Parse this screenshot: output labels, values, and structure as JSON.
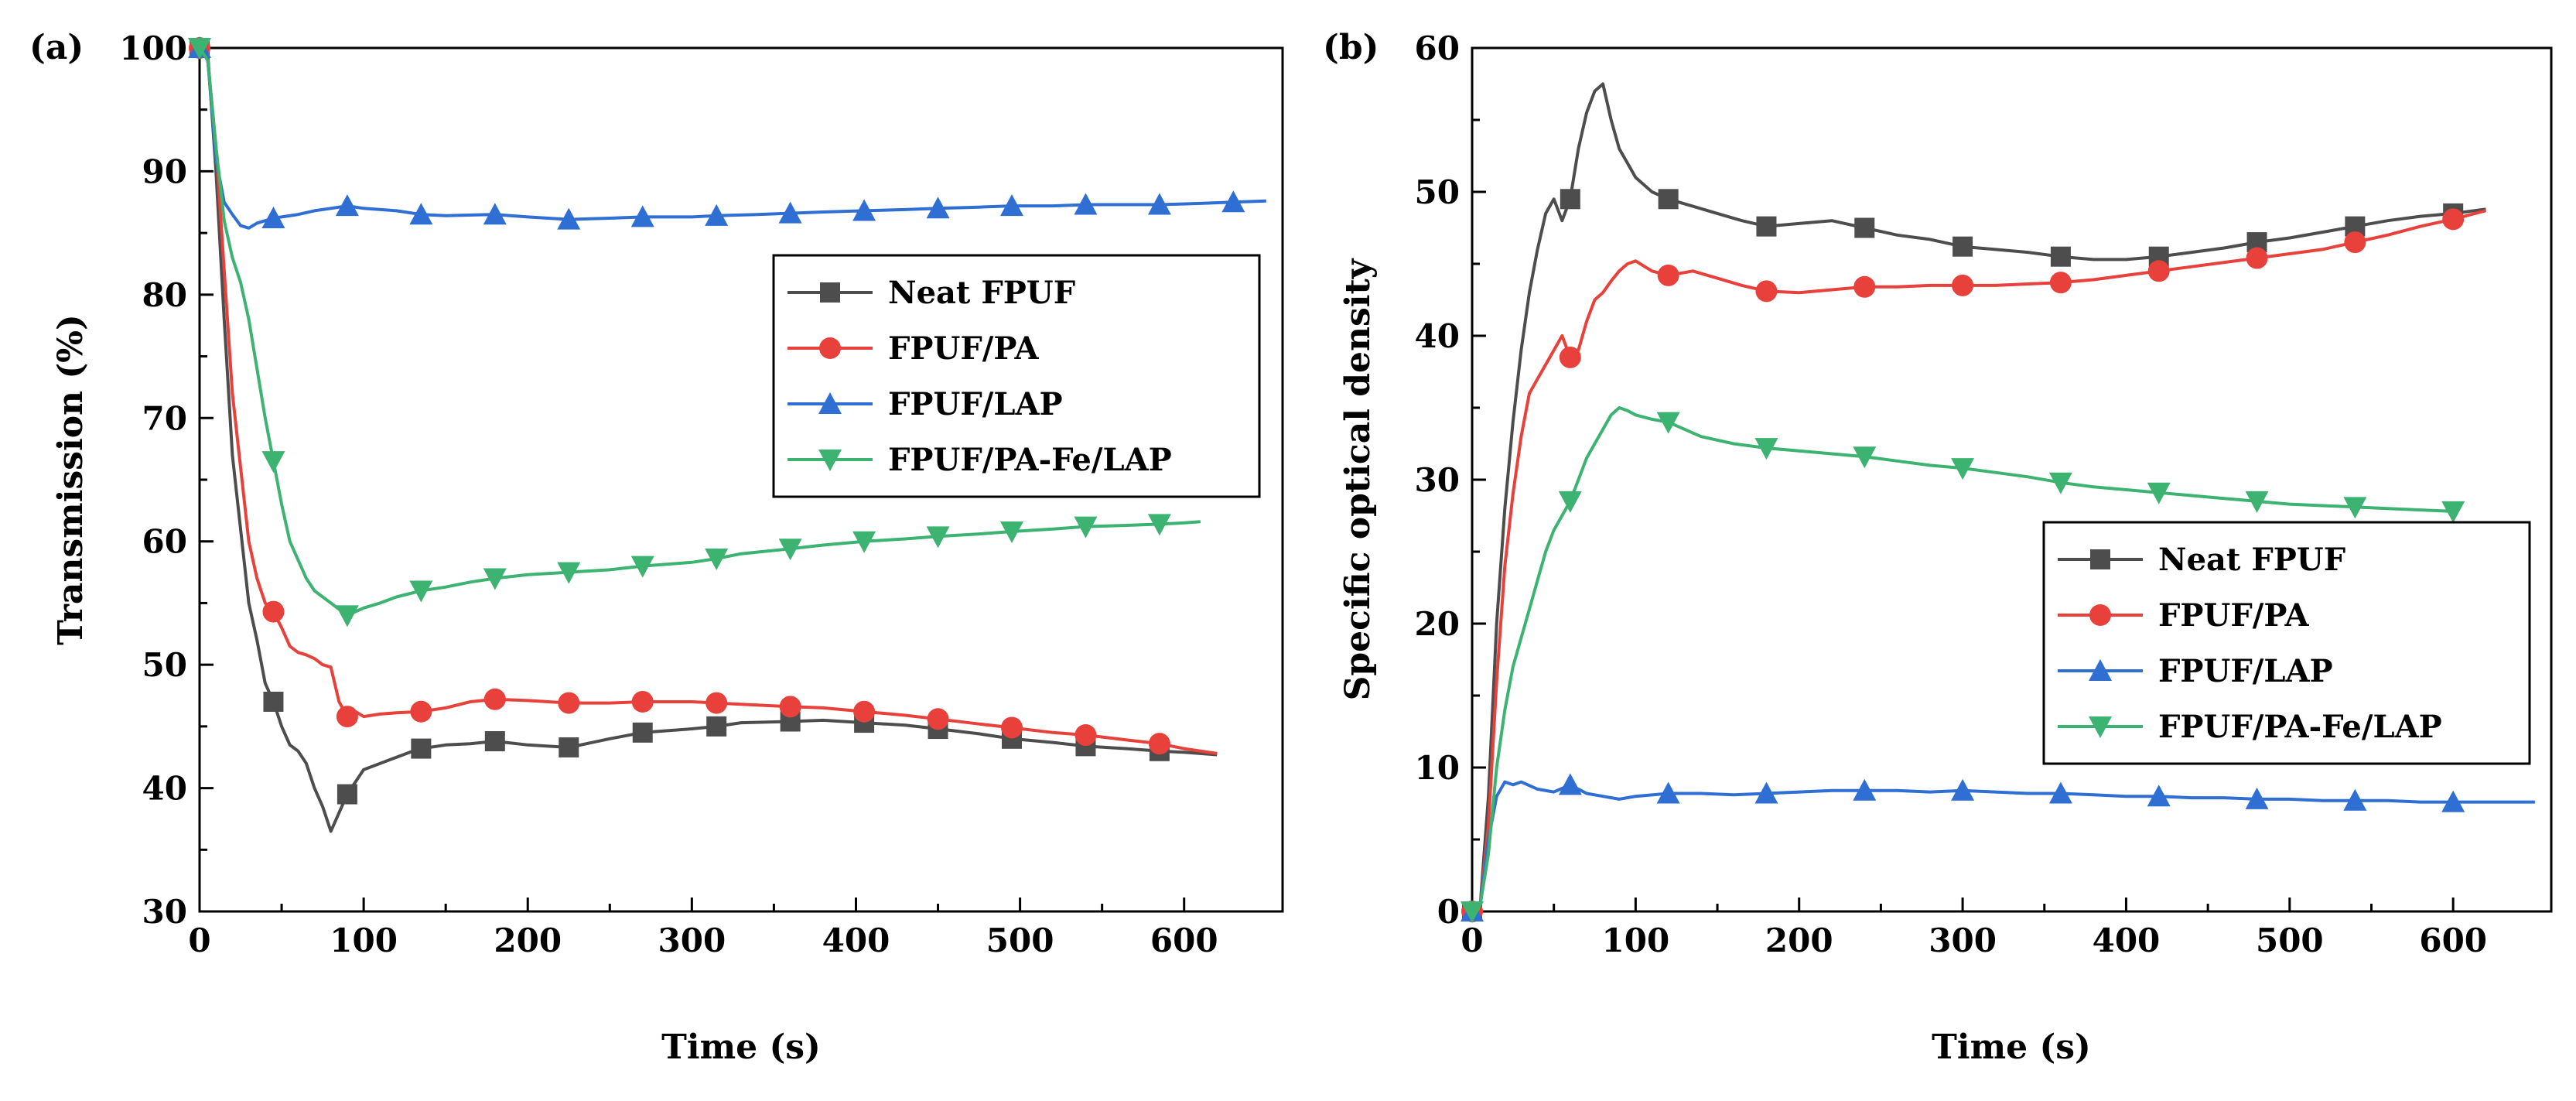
{
  "chart_data": [
    {
      "id": "a",
      "panel_label": "(a)",
      "type": "line",
      "title": "",
      "xlabel": "Time (s)",
      "ylabel": "Transmission (%)",
      "xlim": [
        0,
        660
      ],
      "ylim": [
        30,
        100
      ],
      "xticks": [
        0,
        100,
        200,
        300,
        400,
        500,
        600
      ],
      "yticks": [
        30,
        40,
        50,
        60,
        70,
        80,
        90,
        100
      ],
      "legend_position": "right-middle",
      "series": [
        {
          "name": "Neat FPUF",
          "color": "#4d4d4d",
          "marker": "square",
          "x": [
            0,
            5,
            10,
            15,
            20,
            25,
            30,
            35,
            40,
            45,
            50,
            55,
            60,
            65,
            70,
            75,
            80,
            85,
            90,
            95,
            100,
            110,
            120,
            130,
            135,
            150,
            165,
            180,
            200,
            225,
            250,
            270,
            300,
            315,
            330,
            360,
            380,
            405,
            430,
            450,
            475,
            495,
            520,
            540,
            565,
            585,
            600,
            620
          ],
          "y": [
            100,
            99.5,
            90,
            78,
            67,
            61,
            55,
            52,
            48.5,
            47,
            45,
            43.5,
            43,
            42,
            40,
            38.5,
            36.5,
            38,
            39.5,
            40.5,
            41.5,
            42,
            42.5,
            43,
            43.2,
            43.5,
            43.6,
            43.8,
            43.5,
            43.3,
            44,
            44.5,
            44.8,
            45,
            45.3,
            45.4,
            45.5,
            45.3,
            45.1,
            44.8,
            44.4,
            44,
            43.7,
            43.4,
            43.2,
            43,
            42.9,
            42.7
          ],
          "marker_x": [
            0,
            45,
            90,
            135,
            180,
            225,
            270,
            315,
            360,
            405,
            450,
            495,
            540,
            585
          ]
        },
        {
          "name": "FPUF/PA",
          "color": "#e8403a",
          "marker": "circle",
          "x": [
            0,
            5,
            10,
            15,
            20,
            25,
            30,
            35,
            40,
            45,
            50,
            55,
            60,
            65,
            70,
            75,
            80,
            85,
            90,
            95,
            100,
            110,
            120,
            135,
            150,
            165,
            180,
            200,
            225,
            250,
            270,
            300,
            315,
            330,
            360,
            380,
            405,
            430,
            450,
            475,
            495,
            520,
            540,
            565,
            585,
            600,
            620
          ],
          "y": [
            100,
            99,
            92,
            82,
            72,
            66,
            60,
            57,
            55,
            54.3,
            53,
            51.5,
            51,
            50.8,
            50.5,
            50,
            49.8,
            47,
            45.8,
            46.2,
            45.8,
            46,
            46.1,
            46.2,
            46.5,
            47,
            47.2,
            47.1,
            46.9,
            46.9,
            47,
            47,
            46.9,
            46.8,
            46.6,
            46.5,
            46.2,
            45.9,
            45.6,
            45.2,
            44.9,
            44.5,
            44.3,
            43.9,
            43.6,
            43.2,
            42.8
          ],
          "marker_x": [
            0,
            45,
            90,
            135,
            180,
            225,
            270,
            315,
            360,
            405,
            450,
            495,
            540,
            585
          ]
        },
        {
          "name": "FPUF/LAP",
          "color": "#2f6fd4",
          "marker": "triangle-up",
          "x": [
            0,
            5,
            10,
            15,
            20,
            25,
            30,
            35,
            40,
            45,
            50,
            60,
            70,
            80,
            90,
            100,
            120,
            135,
            150,
            180,
            200,
            225,
            250,
            270,
            300,
            315,
            340,
            360,
            380,
            405,
            430,
            450,
            475,
            495,
            520,
            540,
            565,
            585,
            610,
            630,
            650
          ],
          "y": [
            100,
            99,
            91,
            87.5,
            86.5,
            85.6,
            85.4,
            85.8,
            86,
            86.2,
            86.3,
            86.5,
            86.8,
            87,
            87.2,
            87,
            86.8,
            86.5,
            86.4,
            86.5,
            86.3,
            86.1,
            86.2,
            86.3,
            86.3,
            86.4,
            86.5,
            86.6,
            86.7,
            86.8,
            86.9,
            87,
            87.1,
            87.2,
            87.2,
            87.3,
            87.3,
            87.3,
            87.4,
            87.5,
            87.6
          ],
          "marker_x": [
            0,
            45,
            90,
            135,
            180,
            225,
            270,
            315,
            360,
            405,
            450,
            495,
            540,
            585,
            630
          ]
        },
        {
          "name": "FPUF/PA-Fe/LAP",
          "color": "#3cb371",
          "marker": "triangle-down",
          "x": [
            0,
            5,
            10,
            15,
            20,
            25,
            30,
            35,
            40,
            45,
            50,
            55,
            60,
            65,
            70,
            75,
            80,
            85,
            90,
            95,
            100,
            110,
            120,
            135,
            150,
            165,
            180,
            200,
            225,
            250,
            270,
            300,
            315,
            330,
            360,
            380,
            405,
            430,
            450,
            475,
            495,
            520,
            540,
            565,
            585,
            600,
            610
          ],
          "y": [
            100,
            99,
            92,
            86,
            83,
            81,
            78,
            74,
            70,
            66.5,
            63,
            60,
            58.5,
            57,
            56,
            55.5,
            55,
            54.5,
            54,
            54.3,
            54.6,
            55,
            55.5,
            56,
            56.3,
            56.7,
            57,
            57.3,
            57.5,
            57.7,
            58,
            58.3,
            58.6,
            59,
            59.4,
            59.7,
            60,
            60.2,
            60.4,
            60.6,
            60.8,
            61,
            61.2,
            61.3,
            61.4,
            61.5,
            61.6
          ],
          "marker_x": [
            0,
            45,
            90,
            135,
            180,
            225,
            270,
            315,
            360,
            405,
            450,
            495,
            540,
            585
          ]
        }
      ]
    },
    {
      "id": "b",
      "panel_label": "(b)",
      "type": "line",
      "title": "",
      "xlabel": "Time (s)",
      "ylabel": "Specific optical density",
      "xlim": [
        0,
        660
      ],
      "ylim": [
        0,
        60
      ],
      "xticks": [
        0,
        100,
        200,
        300,
        400,
        500,
        600
      ],
      "yticks": [
        0,
        10,
        20,
        30,
        40,
        50,
        60
      ],
      "legend_position": "right-middle",
      "series": [
        {
          "name": "Neat FPUF",
          "color": "#4d4d4d",
          "marker": "square",
          "x": [
            0,
            5,
            10,
            15,
            20,
            25,
            30,
            35,
            40,
            45,
            50,
            55,
            60,
            65,
            70,
            75,
            80,
            85,
            90,
            95,
            100,
            110,
            120,
            135,
            150,
            165,
            180,
            200,
            220,
            240,
            260,
            280,
            300,
            320,
            340,
            360,
            380,
            400,
            420,
            440,
            460,
            480,
            500,
            520,
            540,
            560,
            580,
            600,
            620
          ],
          "y": [
            0,
            0.5,
            8,
            20,
            28,
            34,
            39,
            43,
            46,
            48.5,
            49.5,
            48,
            49.5,
            53,
            55.5,
            57,
            57.5,
            55,
            53,
            52,
            51,
            50,
            49.5,
            49,
            48.5,
            48,
            47.6,
            47.8,
            48,
            47.5,
            47,
            46.7,
            46.2,
            46,
            45.8,
            45.5,
            45.3,
            45.3,
            45.5,
            45.8,
            46.1,
            46.5,
            46.8,
            47.2,
            47.6,
            48,
            48.3,
            48.5,
            48.8
          ],
          "marker_x": [
            0,
            60,
            120,
            180,
            240,
            300,
            360,
            420,
            480,
            540,
            600
          ]
        },
        {
          "name": "FPUF/PA",
          "color": "#e8403a",
          "marker": "circle",
          "x": [
            0,
            5,
            10,
            15,
            20,
            25,
            30,
            35,
            40,
            45,
            50,
            55,
            60,
            65,
            70,
            75,
            80,
            85,
            90,
            95,
            100,
            110,
            120,
            135,
            150,
            165,
            180,
            200,
            220,
            240,
            260,
            280,
            300,
            320,
            340,
            360,
            380,
            400,
            420,
            440,
            460,
            480,
            500,
            520,
            540,
            560,
            580,
            600,
            620
          ],
          "y": [
            0,
            0.5,
            6,
            16,
            24,
            29,
            33,
            36,
            37,
            38,
            39,
            40,
            38.5,
            39,
            41,
            42.5,
            43,
            43.8,
            44.5,
            45,
            45.2,
            44.5,
            44.2,
            44.5,
            44,
            43.5,
            43.1,
            43,
            43.2,
            43.4,
            43.4,
            43.5,
            43.5,
            43.5,
            43.6,
            43.7,
            43.9,
            44.2,
            44.5,
            44.8,
            45.1,
            45.4,
            45.7,
            46,
            46.5,
            47,
            47.6,
            48.1,
            48.7
          ],
          "marker_x": [
            0,
            60,
            120,
            180,
            240,
            300,
            360,
            420,
            480,
            540,
            600
          ]
        },
        {
          "name": "FPUF/LAP",
          "color": "#2f6fd4",
          "marker": "triangle-up",
          "x": [
            0,
            5,
            10,
            15,
            20,
            25,
            30,
            40,
            50,
            60,
            70,
            80,
            90,
            100,
            120,
            140,
            160,
            180,
            200,
            220,
            240,
            260,
            280,
            300,
            320,
            340,
            360,
            380,
            400,
            420,
            440,
            460,
            480,
            500,
            520,
            540,
            560,
            580,
            600,
            620,
            650
          ],
          "y": [
            0,
            0.5,
            5,
            8,
            9,
            8.8,
            9,
            8.5,
            8.3,
            8.8,
            8.2,
            8,
            7.8,
            8,
            8.2,
            8.2,
            8.1,
            8.2,
            8.3,
            8.4,
            8.4,
            8.4,
            8.3,
            8.4,
            8.3,
            8.2,
            8.2,
            8.1,
            8,
            8,
            7.9,
            7.9,
            7.8,
            7.8,
            7.7,
            7.7,
            7.7,
            7.6,
            7.6,
            7.6,
            7.6
          ],
          "marker_x": [
            0,
            60,
            120,
            180,
            240,
            300,
            360,
            420,
            480,
            540,
            600
          ]
        },
        {
          "name": "FPUF/PA-Fe/LAP",
          "color": "#3cb371",
          "marker": "triangle-down",
          "x": [
            0,
            5,
            10,
            15,
            20,
            25,
            30,
            35,
            40,
            45,
            50,
            55,
            60,
            65,
            70,
            75,
            80,
            85,
            90,
            95,
            100,
            110,
            120,
            140,
            160,
            180,
            200,
            220,
            240,
            260,
            280,
            300,
            320,
            340,
            360,
            380,
            400,
            420,
            440,
            460,
            480,
            500,
            520,
            540,
            560,
            580,
            600
          ],
          "y": [
            0,
            0.5,
            4,
            10,
            14,
            17,
            19,
            21,
            23,
            25,
            26.5,
            27.5,
            28.5,
            30,
            31.5,
            32.5,
            33.5,
            34.5,
            35,
            34.8,
            34.5,
            34.2,
            34,
            33,
            32.5,
            32.2,
            32,
            31.8,
            31.6,
            31.3,
            31,
            30.8,
            30.5,
            30.2,
            29.8,
            29.5,
            29.3,
            29.1,
            28.9,
            28.7,
            28.5,
            28.3,
            28.2,
            28.1,
            28,
            27.9,
            27.8
          ],
          "marker_x": [
            0,
            60,
            120,
            180,
            240,
            300,
            360,
            420,
            480,
            540,
            600
          ]
        }
      ]
    }
  ]
}
